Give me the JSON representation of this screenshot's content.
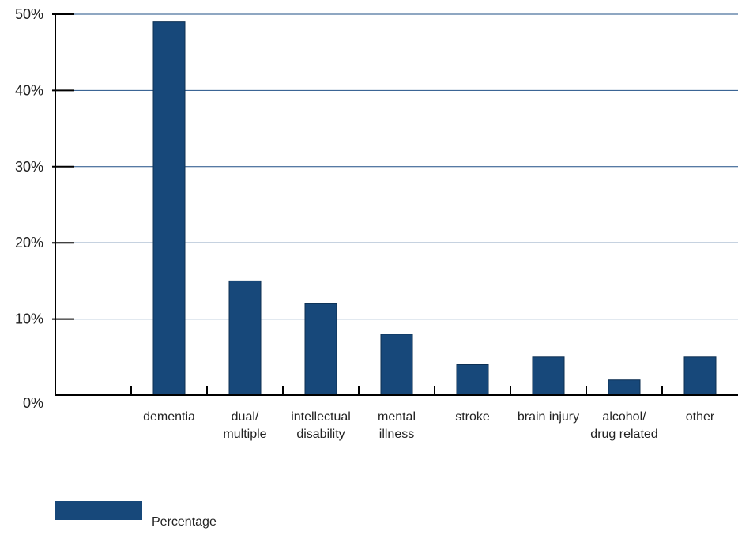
{
  "chart_data": {
    "type": "bar",
    "categories": [
      [
        "",
        ""
      ],
      [
        "dementia"
      ],
      [
        "dual/",
        "multiple"
      ],
      [
        "intellectual",
        "disability"
      ],
      [
        "mental",
        "illness"
      ],
      [
        "stroke"
      ],
      [
        "brain injury"
      ],
      [
        "alcohol/",
        "drug related"
      ],
      [
        "other"
      ]
    ],
    "series": [
      {
        "name": "Percentage",
        "values": [
          null,
          49,
          15,
          12,
          8,
          4,
          5,
          2,
          5
        ]
      }
    ],
    "ylim": [
      0,
      50
    ],
    "yticks": [
      "0%",
      "10%",
      "20%",
      "30%",
      "40%",
      "50%"
    ],
    "grid": true,
    "legend_placement": "bottom-left",
    "colors": {
      "bar": "#17487a",
      "grid": "#1f4f86",
      "axis": "#000000"
    }
  },
  "legend": {
    "label": "Percentage"
  }
}
